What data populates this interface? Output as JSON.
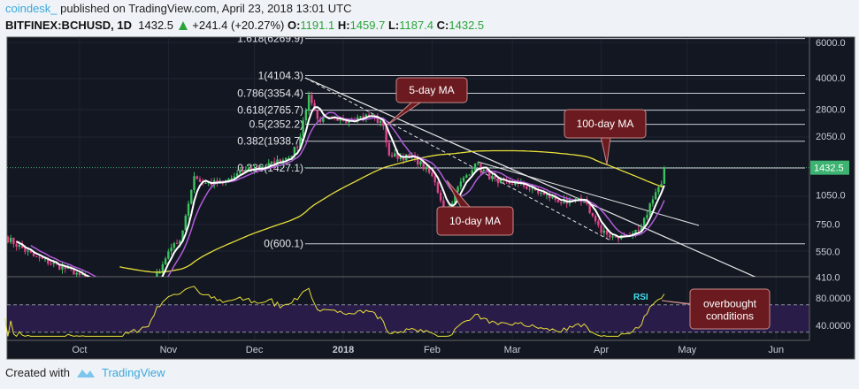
{
  "header": {
    "user": "coindesk_",
    "published": "published on TradingView.com, April 23, 2018 13:01 UTC",
    "symbol": "BITFINEX:BCHUSD, 1D",
    "last": "1432.5",
    "change": "+241.4 (+20.27%)",
    "o_label": "O:",
    "o": "1191.1",
    "h_label": "H:",
    "h": "1459.7",
    "l_label": "L:",
    "l": "1187.4",
    "c_label": "C:",
    "c": "1432.5"
  },
  "footer": {
    "created_with": "Created with",
    "brand": "TradingView"
  },
  "colors": {
    "bg": "#131722",
    "up": "#3cc25f",
    "down": "#e0448a",
    "ma5": "#ffffff",
    "ma10": "#b05cd9",
    "ma100": "#e8e03a",
    "rsi": "#e8e03a",
    "callout": "#6b1a1f",
    "price_tag": "#3cb371"
  },
  "chart_data": {
    "type": "line",
    "title": "BITFINEX:BCHUSD, 1D",
    "price_axis": {
      "scale": "log",
      "ticks": [
        "6000.0",
        "4000.0",
        "2800.0",
        "2050.0",
        "1050.0",
        "750.0",
        "550.0",
        "410.0"
      ],
      "last_price_tag": "1432.5",
      "range": [
        410,
        6000
      ]
    },
    "rsi_axis": {
      "ticks": [
        "80.0000",
        "40.0000"
      ],
      "band": [
        30,
        70
      ]
    },
    "time_axis": [
      "Oct",
      "Nov",
      "Dec",
      "2018",
      "Feb",
      "Mar",
      "Apr",
      "May",
      "Jun"
    ],
    "close_keypoints": {
      "dates": [
        "2017-09-05",
        "2017-09-15",
        "2017-09-30",
        "2017-10-12",
        "2017-10-25",
        "2017-11-01",
        "2017-11-05",
        "2017-11-10",
        "2017-11-13",
        "2017-11-20",
        "2017-11-28",
        "2017-12-05",
        "2017-12-12",
        "2017-12-16",
        "2017-12-20",
        "2017-12-23",
        "2017-12-30",
        "2018-01-06",
        "2018-01-11",
        "2018-01-15",
        "2018-01-17",
        "2018-01-26",
        "2018-02-01",
        "2018-02-06",
        "2018-02-10",
        "2018-02-16",
        "2018-02-24",
        "2018-03-03",
        "2018-03-12",
        "2018-03-20",
        "2018-03-26",
        "2018-04-01",
        "2018-04-06",
        "2018-04-11",
        "2018-04-15",
        "2018-04-18",
        "2018-04-21",
        "2018-04-22",
        "2018-04-23"
      ],
      "values": [
        650,
        520,
        430,
        320,
        340,
        550,
        620,
        1300,
        1200,
        1200,
        1400,
        1450,
        1600,
        1800,
        3300,
        2500,
        2450,
        2550,
        2600,
        2300,
        1650,
        1600,
        1300,
        850,
        1150,
        1500,
        1200,
        1200,
        1050,
        950,
        1000,
        680,
        650,
        660,
        720,
        950,
        1150,
        1191,
        1432.5
      ]
    },
    "fibonacci": [
      {
        "label": "1.618(6269.9)",
        "value": 6269.9
      },
      {
        "label": "1(4104.3)",
        "value": 4104.3
      },
      {
        "label": "0.786(3354.4)",
        "value": 3354.4
      },
      {
        "label": "0.618(2765.7)",
        "value": 2765.7
      },
      {
        "label": "0.5(2352.2)",
        "value": 2352.2
      },
      {
        "label": "0.382(1938.7)",
        "value": 1938.7
      },
      {
        "label": "0.236(1427.1)",
        "value": 1427.1
      },
      {
        "label": "0(600.1)",
        "value": 600.1
      }
    ],
    "annotations": {
      "ma5": "5-day MA",
      "ma10": "10-day MA",
      "ma100": "100-day MA",
      "rsi": "RSI",
      "overbought": "overbought conditions"
    }
  }
}
